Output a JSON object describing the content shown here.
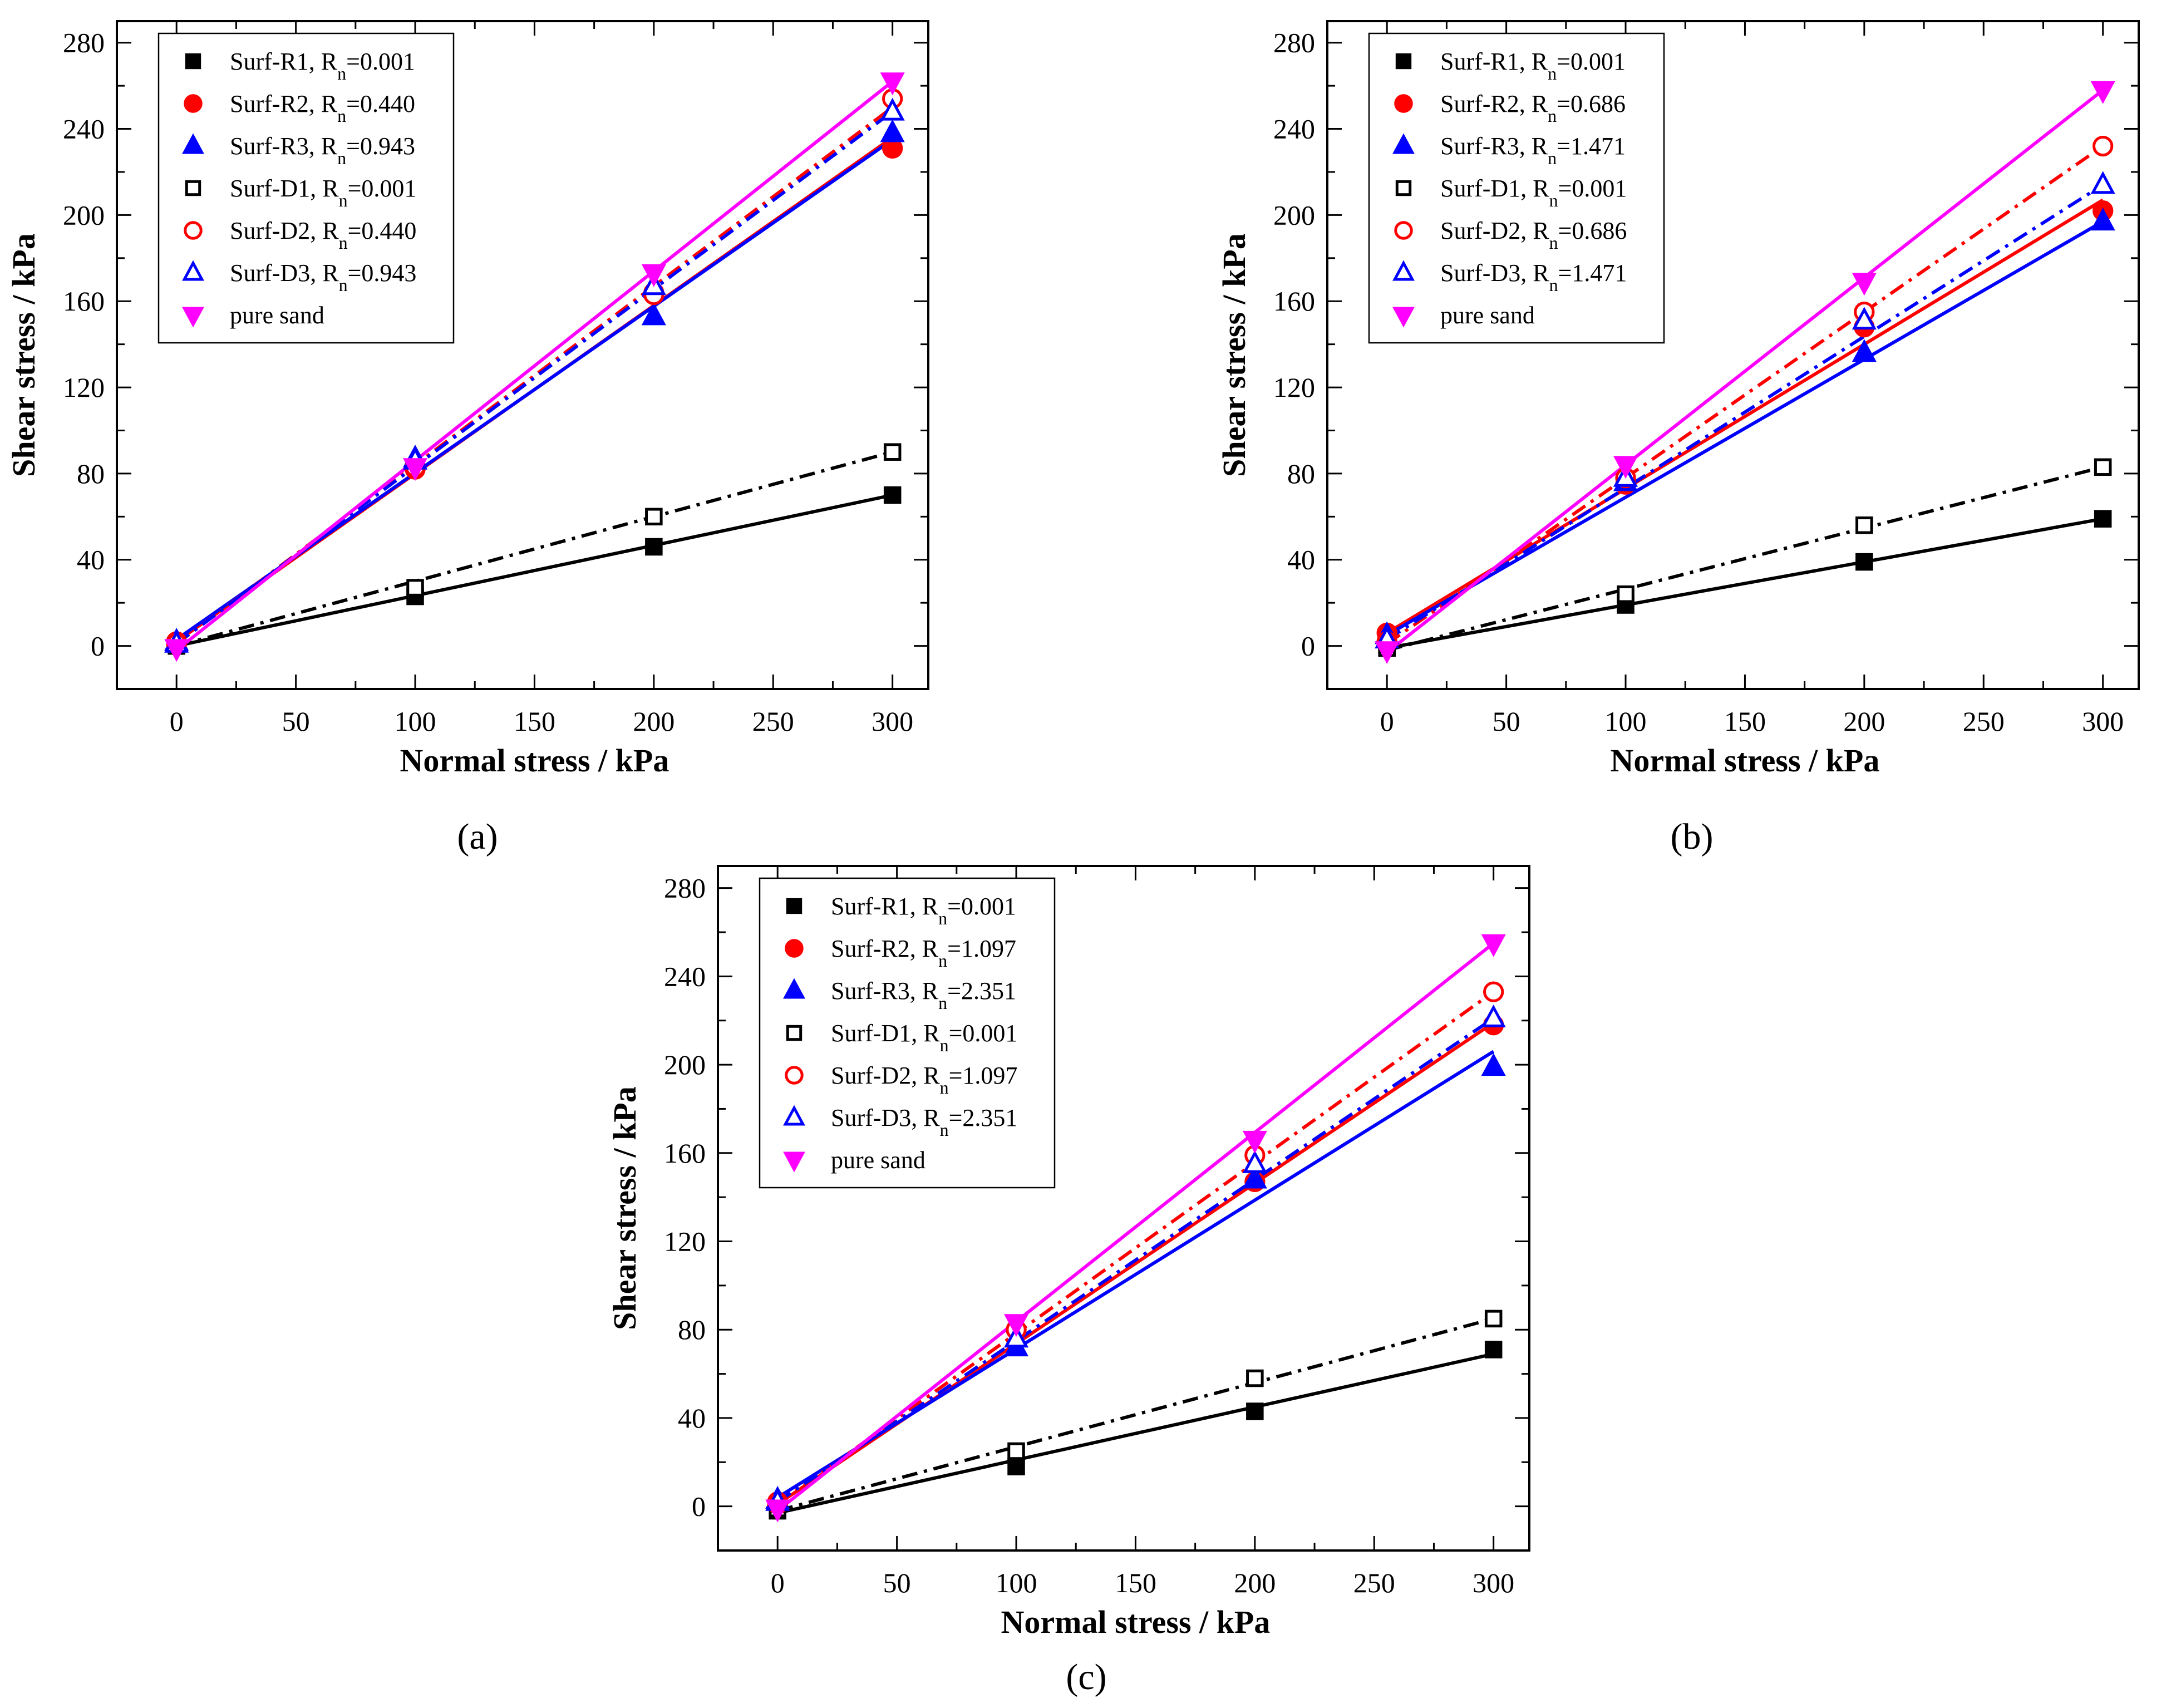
{
  "figure": {
    "panel_labels": [
      "(a)",
      "(b)",
      "(c)"
    ],
    "colors": {
      "R1": "#000000",
      "R2": "#ff0000",
      "R3": "#0000ff",
      "D1": "#000000",
      "D2": "#ff0000",
      "D3": "#0000ff",
      "pure": "#ff00ff"
    }
  },
  "chart_data": [
    {
      "type": "scatter",
      "panel": "(a)",
      "xlabel": "Normal stress / kPa",
      "ylabel": "Shear stress / kPa",
      "xlim": [
        -25,
        315
      ],
      "ylim": [
        -20,
        290
      ],
      "xticks": [
        0,
        50,
        100,
        150,
        200,
        250,
        300
      ],
      "yticks": [
        0,
        40,
        80,
        120,
        160,
        200,
        240,
        280
      ],
      "legend": "top-left",
      "series": [
        {
          "key": "R1",
          "name": "Surf-R1, R",
          "sub": "n",
          "value": "=0.001",
          "marker": "square",
          "filled": true,
          "line": "solid",
          "x": [
            0,
            100,
            200,
            300
          ],
          "y": [
            0,
            23,
            46,
            70
          ],
          "fit": [
            [
              0,
              0
            ],
            [
              300,
              70
            ]
          ]
        },
        {
          "key": "R2",
          "name": "Surf-R2, R",
          "sub": "n",
          "value": "=0.440",
          "marker": "circle",
          "filled": true,
          "line": "solid",
          "x": [
            0,
            100,
            200,
            300
          ],
          "y": [
            2,
            82,
            164,
            231
          ],
          "fit": [
            [
              0,
              2
            ],
            [
              300,
              236
            ]
          ]
        },
        {
          "key": "R3",
          "name": "Surf-R3, R",
          "sub": "n",
          "value": "=0.943",
          "marker": "triangle-up",
          "filled": true,
          "line": "solid",
          "x": [
            0,
            100,
            200,
            300
          ],
          "y": [
            2,
            87,
            153,
            238
          ],
          "fit": [
            [
              0,
              3
            ],
            [
              300,
              235
            ]
          ]
        },
        {
          "key": "D1",
          "name": "Surf-D1, R",
          "sub": "n",
          "value": "=0.001",
          "marker": "square",
          "filled": false,
          "line": "dashdot",
          "x": [
            0,
            100,
            200,
            300
          ],
          "y": [
            0,
            27,
            60,
            90
          ],
          "fit": [
            [
              0,
              0
            ],
            [
              300,
              90
            ]
          ]
        },
        {
          "key": "D2",
          "name": "Surf-D2, R",
          "sub": "n",
          "value": "=0.440",
          "marker": "circle",
          "filled": false,
          "line": "dashdot",
          "x": [
            0,
            100,
            200,
            300
          ],
          "y": [
            1,
            83,
            163,
            254
          ],
          "fit": [
            [
              0,
              1
            ],
            [
              300,
              250
            ]
          ]
        },
        {
          "key": "D3",
          "name": "Surf-D3, R",
          "sub": "n",
          "value": "=0.943",
          "marker": "triangle-up",
          "filled": false,
          "line": "dashdot",
          "x": [
            0,
            100,
            200,
            300
          ],
          "y": [
            1,
            86,
            167,
            248
          ],
          "fit": [
            [
              0,
              1
            ],
            [
              300,
              248
            ]
          ]
        },
        {
          "key": "pure",
          "name": "pure sand",
          "sub": "",
          "value": "",
          "marker": "triangle-down",
          "filled": true,
          "line": "solid",
          "x": [
            0,
            100,
            200,
            300
          ],
          "y": [
            -1,
            83,
            173,
            262
          ],
          "fit": [
            [
              0,
              -2
            ],
            [
              300,
              262
            ]
          ]
        }
      ]
    },
    {
      "type": "scatter",
      "panel": "(b)",
      "xlabel": "Normal stress / kPa",
      "ylabel": "Shear stress / kPa",
      "xlim": [
        -25,
        315
      ],
      "ylim": [
        -20,
        290
      ],
      "xticks": [
        0,
        50,
        100,
        150,
        200,
        250,
        300
      ],
      "yticks": [
        0,
        40,
        80,
        120,
        160,
        200,
        240,
        280
      ],
      "legend": "top-left",
      "series": [
        {
          "key": "R1",
          "name": "Surf-R1, R",
          "sub": "n",
          "value": "=0.001",
          "marker": "square",
          "filled": true,
          "line": "solid",
          "x": [
            0,
            100,
            200,
            300
          ],
          "y": [
            0,
            19,
            39,
            59
          ],
          "fit": [
            [
              0,
              -1
            ],
            [
              300,
              59
            ]
          ]
        },
        {
          "key": "R2",
          "name": "Surf-R2, R",
          "sub": "n",
          "value": "=0.686",
          "marker": "circle",
          "filled": true,
          "line": "solid",
          "x": [
            0,
            100,
            200,
            300
          ],
          "y": [
            6,
            75,
            148,
            202
          ],
          "fit": [
            [
              0,
              6
            ],
            [
              300,
              207
            ]
          ]
        },
        {
          "key": "R3",
          "name": "Surf-R3, R",
          "sub": "n",
          "value": "=1.471",
          "marker": "triangle-up",
          "filled": true,
          "line": "solid",
          "x": [
            0,
            100,
            200,
            300
          ],
          "y": [
            5,
            76,
            136,
            197
          ],
          "fit": [
            [
              0,
              5
            ],
            [
              300,
              197
            ]
          ]
        },
        {
          "key": "D1",
          "name": "Surf-D1, R",
          "sub": "n",
          "value": "=0.001",
          "marker": "square",
          "filled": false,
          "line": "dashdot",
          "x": [
            0,
            100,
            200,
            300
          ],
          "y": [
            -1,
            24,
            56,
            83
          ],
          "fit": [
            [
              0,
              -2
            ],
            [
              300,
              83
            ]
          ]
        },
        {
          "key": "D2",
          "name": "Surf-D2, R",
          "sub": "n",
          "value": "=0.686",
          "marker": "circle",
          "filled": false,
          "line": "dashdot",
          "x": [
            0,
            100,
            200,
            300
          ],
          "y": [
            2,
            78,
            155,
            232
          ],
          "fit": [
            [
              0,
              1
            ],
            [
              300,
              232
            ]
          ]
        },
        {
          "key": "D3",
          "name": "Surf-D3, R",
          "sub": "n",
          "value": "=1.471",
          "marker": "triangle-up",
          "filled": false,
          "line": "dashdot",
          "x": [
            0,
            100,
            200,
            300
          ],
          "y": [
            3,
            78,
            151,
            214
          ],
          "fit": [
            [
              0,
              3
            ],
            [
              300,
              214
            ]
          ]
        },
        {
          "key": "pure",
          "name": "pure sand",
          "sub": "",
          "value": "",
          "marker": "triangle-down",
          "filled": true,
          "line": "solid",
          "x": [
            0,
            100,
            200,
            300
          ],
          "y": [
            -2,
            84,
            169,
            258
          ],
          "fit": [
            [
              0,
              -3
            ],
            [
              300,
              258
            ]
          ]
        }
      ]
    },
    {
      "type": "scatter",
      "panel": "(c)",
      "xlabel": "Normal stress / kPa",
      "ylabel": "Shear stress / kPa",
      "xlim": [
        -25,
        315
      ],
      "ylim": [
        -20,
        290
      ],
      "xticks": [
        0,
        50,
        100,
        150,
        200,
        250,
        300
      ],
      "yticks": [
        0,
        40,
        80,
        120,
        160,
        200,
        240,
        280
      ],
      "legend": "top-left",
      "series": [
        {
          "key": "R1",
          "name": "Surf-R1, R",
          "sub": "n",
          "value": "=0.001",
          "marker": "square",
          "filled": true,
          "line": "solid",
          "x": [
            0,
            100,
            200,
            300
          ],
          "y": [
            -2,
            18,
            43,
            71
          ],
          "fit": [
            [
              0,
              -3
            ],
            [
              300,
              69
            ]
          ]
        },
        {
          "key": "R2",
          "name": "Surf-R2, R",
          "sub": "n",
          "value": "=1.097",
          "marker": "circle",
          "filled": true,
          "line": "solid",
          "x": [
            0,
            100,
            200,
            300
          ],
          "y": [
            2,
            80,
            147,
            218
          ],
          "fit": [
            [
              0,
              1
            ],
            [
              300,
              219
            ]
          ]
        },
        {
          "key": "R3",
          "name": "Surf-R3, R",
          "sub": "n",
          "value": "=2.351",
          "marker": "triangle-up",
          "filled": true,
          "line": "solid",
          "x": [
            0,
            100,
            200,
            300
          ],
          "y": [
            3,
            72,
            148,
            199
          ],
          "fit": [
            [
              0,
              4
            ],
            [
              300,
              206
            ]
          ]
        },
        {
          "key": "D1",
          "name": "Surf-D1, R",
          "sub": "n",
          "value": "=0.001",
          "marker": "square",
          "filled": false,
          "line": "dashdot",
          "x": [
            0,
            100,
            200,
            300
          ],
          "y": [
            -1,
            25,
            58,
            85
          ],
          "fit": [
            [
              0,
              -2
            ],
            [
              300,
              85
            ]
          ]
        },
        {
          "key": "D2",
          "name": "Surf-D2, R",
          "sub": "n",
          "value": "=1.097",
          "marker": "circle",
          "filled": false,
          "line": "dashdot",
          "x": [
            0,
            100,
            200,
            300
          ],
          "y": [
            1,
            80,
            159,
            233
          ],
          "fit": [
            [
              0,
              1
            ],
            [
              300,
              233
            ]
          ]
        },
        {
          "key": "D3",
          "name": "Surf-D3, R",
          "sub": "n",
          "value": "=2.351",
          "marker": "triangle-up",
          "filled": false,
          "line": "dashdot",
          "x": [
            0,
            100,
            200,
            300
          ],
          "y": [
            2,
            76,
            155,
            221
          ],
          "fit": [
            [
              0,
              2
            ],
            [
              300,
              221
            ]
          ]
        },
        {
          "key": "pure",
          "name": "pure sand",
          "sub": "",
          "value": "",
          "marker": "triangle-down",
          "filled": true,
          "line": "solid",
          "x": [
            0,
            100,
            200,
            300
          ],
          "y": [
            -1,
            83,
            166,
            255
          ],
          "fit": [
            [
              0,
              -2
            ],
            [
              300,
              255
            ]
          ]
        }
      ]
    }
  ]
}
